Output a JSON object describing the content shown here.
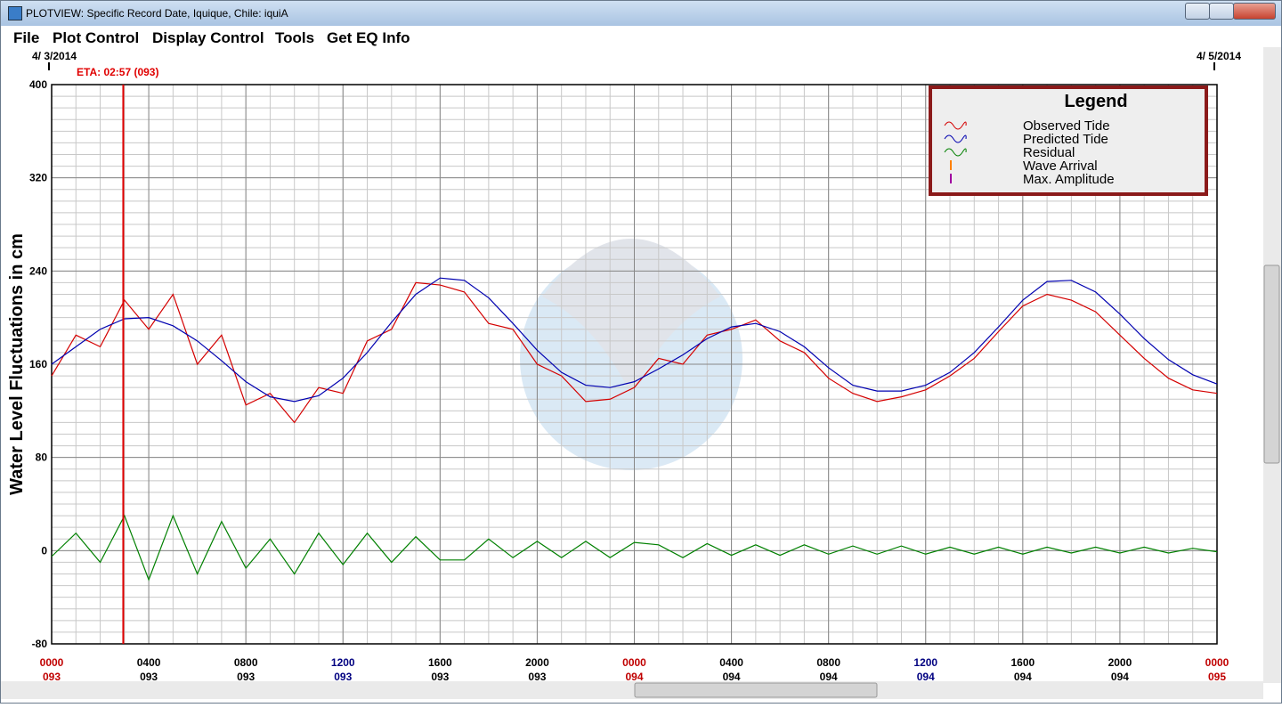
{
  "window_title": "PLOTVIEW: Specific Record Date, Iquique, Chile: iquiA",
  "menu": [
    "File",
    "Plot Control",
    "Display Control",
    "Tools",
    "Get EQ Info"
  ],
  "chart_data": {
    "type": "line",
    "ylabel": "Water Level Fluctuations in cm",
    "start_date": "4/ 3/2014",
    "end_date": "4/ 5/2014",
    "eta": {
      "label": "ETA: 02:57 (093)",
      "x": 2.95,
      "color": "#e00000"
    },
    "legend_title": "Legend",
    "x": [
      0,
      1,
      2,
      3,
      4,
      5,
      6,
      7,
      8,
      9,
      10,
      11,
      12,
      13,
      14,
      15,
      16,
      17,
      18,
      19,
      20,
      21,
      22,
      23,
      24,
      25,
      26,
      27,
      28,
      29,
      30,
      31,
      32,
      33,
      34,
      35,
      36,
      37,
      38,
      39,
      40,
      41,
      42,
      43,
      44,
      45,
      46,
      47,
      48
    ],
    "series": [
      {
        "name": "Observed Tide",
        "color": "#d40000",
        "values": [
          150,
          185,
          175,
          215,
          190,
          220,
          160,
          185,
          125,
          135,
          110,
          140,
          135,
          180,
          190,
          230,
          228,
          222,
          195,
          190,
          160,
          150,
          128,
          130,
          140,
          165,
          160,
          185,
          190,
          198,
          180,
          170,
          148,
          135,
          128,
          132,
          138,
          150,
          165,
          188,
          210,
          220,
          215,
          205,
          185,
          165,
          148,
          138,
          135
        ]
      },
      {
        "name": "Predicted Tide",
        "color": "#0000b0",
        "values": [
          160,
          175,
          190,
          199,
          200,
          193,
          180,
          163,
          145,
          132,
          128,
          133,
          148,
          170,
          196,
          220,
          234,
          232,
          217,
          195,
          172,
          153,
          142,
          140,
          145,
          156,
          168,
          182,
          192,
          195,
          188,
          175,
          157,
          142,
          137,
          137,
          142,
          153,
          170,
          192,
          215,
          231,
          232,
          222,
          203,
          182,
          164,
          151,
          143
        ]
      },
      {
        "name": "Residual",
        "color": "#008000",
        "values": [
          -5,
          15,
          -10,
          30,
          -25,
          30,
          -20,
          25,
          -15,
          10,
          -20,
          15,
          -12,
          15,
          -10,
          12,
          -8,
          -8,
          10,
          -6,
          8,
          -6,
          8,
          -6,
          7,
          5,
          -6,
          6,
          -4,
          5,
          -4,
          5,
          -3,
          4,
          -3,
          4,
          -3,
          3,
          -3,
          3,
          -3,
          3,
          -2,
          3,
          -2,
          3,
          -2,
          2,
          -1
        ]
      }
    ],
    "markers": [
      {
        "name": "Wave Arrival",
        "color": "#ff8000"
      },
      {
        "name": "Max. Amplitude",
        "color": "#a000a0"
      }
    ],
    "xlim": [
      0,
      48
    ],
    "xticks": [
      {
        "value": 0,
        "label": "0000",
        "day": "093",
        "color": "#c00000"
      },
      {
        "value": 4,
        "label": "0400",
        "day": "093",
        "color": "#000000"
      },
      {
        "value": 8,
        "label": "0800",
        "day": "093",
        "color": "#000000"
      },
      {
        "value": 12,
        "label": "1200",
        "day": "093",
        "color": "#000080"
      },
      {
        "value": 16,
        "label": "1600",
        "day": "093",
        "color": "#000000"
      },
      {
        "value": 20,
        "label": "2000",
        "day": "093",
        "color": "#000000"
      },
      {
        "value": 24,
        "label": "0000",
        "day": "094",
        "color": "#c00000"
      },
      {
        "value": 28,
        "label": "0400",
        "day": "094",
        "color": "#000000"
      },
      {
        "value": 32,
        "label": "0800",
        "day": "094",
        "color": "#000000"
      },
      {
        "value": 36,
        "label": "1200",
        "day": "094",
        "color": "#000080"
      },
      {
        "value": 40,
        "label": "1600",
        "day": "094",
        "color": "#000000"
      },
      {
        "value": 44,
        "label": "2000",
        "day": "094",
        "color": "#000000"
      },
      {
        "value": 48,
        "label": "0000",
        "day": "095",
        "color": "#c00000"
      }
    ],
    "ylim": [
      -80,
      400
    ],
    "yticks": [
      -80,
      0,
      80,
      160,
      240,
      320,
      400
    ],
    "grid": true
  }
}
